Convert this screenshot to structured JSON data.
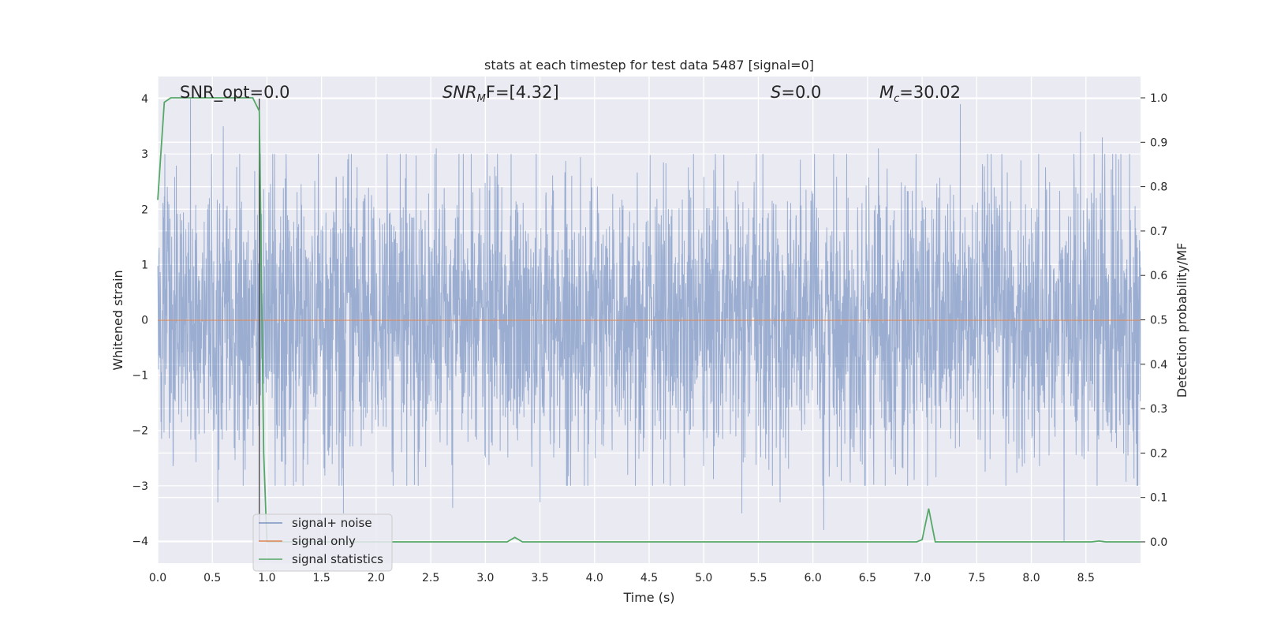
{
  "chart_data": {
    "type": "line",
    "title": "stats at each timestep for test data 5487 [signal=0]",
    "xlabel": "Time (s)",
    "ylabel": "Whitened strain",
    "ylabel_right": "Detection probability/MF",
    "xlim": [
      0.0,
      9.0
    ],
    "ylim": [
      -4.4,
      4.4
    ],
    "ylim_right": [
      -0.048,
      1.048
    ],
    "x_ticks": [
      "0.0",
      "0.5",
      "1.0",
      "1.5",
      "2.0",
      "2.5",
      "3.0",
      "3.5",
      "4.0",
      "4.5",
      "5.0",
      "5.5",
      "6.0",
      "6.5",
      "7.0",
      "7.5",
      "8.0",
      "8.5"
    ],
    "y_ticks": [
      "4",
      "3",
      "2",
      "1",
      "0",
      "−1",
      "−2",
      "−3",
      "−4"
    ],
    "y_right_ticks": [
      "1.0",
      "0.9",
      "0.8",
      "0.7",
      "0.6",
      "0.5",
      "0.4",
      "0.3",
      "0.2",
      "0.1",
      "0.0"
    ],
    "grid": true,
    "legend_position": "lower-left",
    "annotations": {
      "snr_opt": "SNR_opt=0.0",
      "snr_mf_sym": "SNR",
      "snr_mf_sub": "M",
      "snr_mf_rest": "F=[4.32]",
      "s_sym": "S",
      "s_rest": "=0.0",
      "mc_sym": "M",
      "mc_sub": "c",
      "mc_rest": "=30.02"
    },
    "vline_x": 0.93,
    "series": [
      {
        "name": "signal+ noise",
        "color": "#4c72b0",
        "axis": "left",
        "description_envelope": true,
        "peaks": [
          [
            0.05,
            2.0
          ],
          [
            0.3,
            4.0
          ],
          [
            0.6,
            3.5
          ],
          [
            0.93,
            2.5
          ],
          [
            1.7,
            3.3
          ],
          [
            2.55,
            3.1
          ],
          [
            3.5,
            3.1
          ],
          [
            5.35,
            3.9
          ],
          [
            5.7,
            3.3
          ],
          [
            6.6,
            3.1
          ],
          [
            7.35,
            3.9
          ],
          [
            8.45,
            3.4
          ],
          [
            8.65,
            3.3
          ],
          [
            8.8,
            2.9
          ]
        ],
        "troughs": [
          [
            0.55,
            -3.3
          ],
          [
            1.7,
            -3.5
          ],
          [
            2.7,
            -3.4
          ],
          [
            3.5,
            -3.3
          ],
          [
            5.35,
            -3.5
          ],
          [
            5.7,
            -3.3
          ],
          [
            6.1,
            -3.8
          ],
          [
            8.3,
            -4.0
          ]
        ]
      },
      {
        "name": "signal only",
        "color": "#dd8452",
        "axis": "left",
        "x": [
          0.0,
          9.0
        ],
        "y": [
          0.0,
          0.0
        ]
      },
      {
        "name": "signal statistics",
        "color": "#55a868",
        "axis": "right",
        "x": [
          0.0,
          0.06,
          0.12,
          0.5,
          0.8,
          0.87,
          0.93,
          0.97,
          1.0,
          3.2,
          3.27,
          3.34,
          6.95,
          7.0,
          7.06,
          7.12,
          8.55,
          8.62,
          8.68,
          9.0
        ],
        "y": [
          0.77,
          0.99,
          1.0,
          1.0,
          1.0,
          1.0,
          0.97,
          0.2,
          0.0,
          0.0,
          0.01,
          0.0,
          0.0,
          0.005,
          0.075,
          0.0,
          0.0,
          0.002,
          0.0,
          0.0
        ]
      }
    ]
  }
}
